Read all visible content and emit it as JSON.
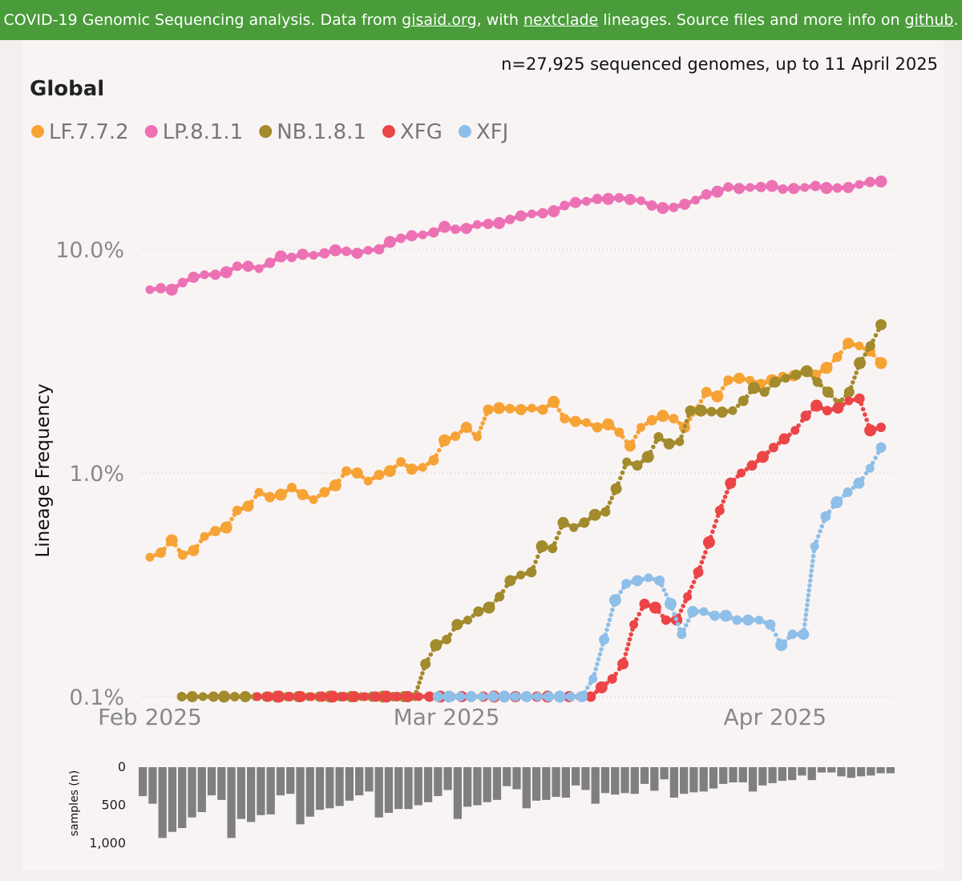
{
  "banner": {
    "t1": "COVID-19 Genomic Sequencing analysis. Data from ",
    "l1": "gisaid.org",
    "t2": ", with ",
    "l2": "nextclade",
    "t3": " lineages. Source files and more info on ",
    "l3": "github",
    "t4": "."
  },
  "colors": {
    "banner": "#4a9c3a",
    "LF.7.7.2": "#f6a336",
    "LP.8.1.1": "#ec71b4",
    "NB.1.8.1": "#a38a2c",
    "XFG": "#ec4547",
    "XFJ": "#8ebfe8",
    "samples_bar": "#7f7f7f"
  },
  "chart_data": [
    {
      "type": "line",
      "title": "Global",
      "subtitle": "n=27,925 sequenced genomes, up to 11 April 2025",
      "ylabel": "Lineage Frequency",
      "yscale": "log",
      "ylim": [
        0.1,
        25
      ],
      "yticks": [
        0.1,
        1.0,
        10.0
      ],
      "ytick_labels": [
        "0.1%",
        "1.0%",
        "10.0%"
      ],
      "x_start": "2025-02-01",
      "x_end": "2025-04-11",
      "xticks": [
        "2025-02-01",
        "2025-03-01",
        "2025-04-01"
      ],
      "xtick_labels": [
        "Feb 2025",
        "Mar 2025",
        "Apr 2025"
      ],
      "grid": "horizontal-dotted",
      "legend_position": "top-left",
      "series": [
        {
          "name": "LF.7.7.2",
          "values": [
            0.42,
            0.44,
            0.5,
            0.43,
            0.45,
            0.52,
            0.55,
            0.57,
            0.68,
            0.71,
            0.82,
            0.78,
            0.8,
            0.86,
            0.8,
            0.76,
            0.82,
            0.88,
            1.02,
            1.0,
            0.92,
            0.98,
            1.02,
            1.12,
            1.04,
            1.06,
            1.14,
            1.4,
            1.46,
            1.6,
            1.45,
            1.92,
            1.95,
            1.94,
            1.92,
            1.95,
            1.92,
            2.08,
            1.75,
            1.7,
            1.68,
            1.6,
            1.65,
            1.52,
            1.32,
            1.6,
            1.72,
            1.8,
            1.75,
            1.6,
            1.9,
            2.3,
            2.2,
            2.6,
            2.65,
            2.6,
            2.5,
            2.6,
            2.7,
            2.72,
            2.85,
            2.75,
            2.95,
            3.3,
            3.8,
            3.7,
            3.5,
            3.1
          ]
        },
        {
          "name": "LP.8.1.1",
          "values": [
            6.6,
            6.7,
            6.6,
            7.1,
            7.5,
            7.7,
            7.7,
            7.9,
            8.4,
            8.4,
            8.2,
            8.7,
            9.3,
            9.2,
            9.5,
            9.4,
            9.6,
            9.9,
            9.8,
            9.6,
            9.9,
            10.0,
            10.8,
            11.2,
            11.5,
            11.6,
            11.9,
            12.6,
            12.3,
            12.4,
            12.9,
            13.0,
            13.1,
            13.6,
            14.1,
            14.4,
            14.5,
            14.8,
            15.7,
            16.2,
            16.4,
            16.8,
            16.8,
            17.0,
            16.7,
            16.5,
            15.7,
            15.3,
            15.4,
            15.9,
            16.6,
            17.6,
            18.1,
            19.0,
            18.7,
            18.9,
            19.0,
            19.2,
            18.6,
            18.7,
            18.9,
            19.2,
            18.8,
            18.8,
            18.9,
            19.5,
            20.0,
            20.1
          ]
        },
        {
          "name": "NB.1.8.1",
          "values": [
            null,
            null,
            null,
            0.1,
            0.1,
            0.1,
            0.1,
            0.1,
            0.1,
            0.1,
            0.1,
            0.1,
            0.1,
            0.1,
            0.1,
            0.1,
            0.1,
            0.1,
            0.1,
            0.1,
            0.1,
            0.1,
            0.1,
            0.1,
            0.1,
            0.1,
            0.14,
            0.17,
            0.18,
            0.21,
            0.22,
            0.24,
            0.25,
            0.28,
            0.33,
            0.35,
            0.36,
            0.47,
            0.46,
            0.6,
            0.57,
            0.6,
            0.65,
            0.67,
            0.85,
            1.12,
            1.08,
            1.18,
            1.45,
            1.35,
            1.38,
            1.9,
            1.9,
            1.88,
            1.87,
            1.9,
            2.1,
            2.4,
            2.3,
            2.55,
            2.65,
            2.75,
            2.85,
            2.55,
            2.3,
            2.05,
            2.3,
            3.1,
            3.7,
            4.6
          ]
        },
        {
          "name": "XFG",
          "values": [
            null,
            null,
            null,
            null,
            null,
            null,
            null,
            null,
            null,
            null,
            0.1,
            0.1,
            0.1,
            0.1,
            0.1,
            0.1,
            0.1,
            0.1,
            0.1,
            0.1,
            0.1,
            0.1,
            0.1,
            0.1,
            0.1,
            0.1,
            0.1,
            0.1,
            0.1,
            0.1,
            0.1,
            0.1,
            0.1,
            0.1,
            0.1,
            0.1,
            0.1,
            0.1,
            0.1,
            0.1,
            0.1,
            0.1,
            0.11,
            0.12,
            0.14,
            0.21,
            0.26,
            0.25,
            0.22,
            0.22,
            0.28,
            0.36,
            0.49,
            0.68,
            0.9,
            1.0,
            1.08,
            1.18,
            1.3,
            1.42,
            1.55,
            1.8,
            2.0,
            1.9,
            1.95,
            2.1,
            2.15,
            1.55,
            1.6
          ]
        },
        {
          "name": "XFJ",
          "values": [
            null,
            null,
            null,
            null,
            null,
            null,
            null,
            null,
            null,
            null,
            null,
            null,
            null,
            null,
            null,
            null,
            null,
            null,
            null,
            null,
            null,
            null,
            null,
            null,
            null,
            null,
            0.1,
            0.1,
            0.1,
            0.1,
            0.1,
            0.1,
            0.1,
            0.1,
            0.1,
            0.1,
            0.1,
            0.1,
            0.1,
            0.1,
            0.12,
            0.18,
            0.27,
            0.32,
            0.33,
            0.34,
            0.33,
            0.26,
            0.19,
            0.24,
            0.24,
            0.23,
            0.23,
            0.22,
            0.22,
            0.22,
            0.21,
            0.17,
            0.19,
            0.19,
            0.47,
            0.64,
            0.74,
            0.82,
            0.9,
            1.05,
            1.3
          ]
        }
      ]
    },
    {
      "type": "bar",
      "ylabel": "samples (n)",
      "ylim": [
        0,
        1000
      ],
      "yticks": [
        0,
        500,
        1000
      ],
      "ytick_labels": [
        "0",
        "500",
        "1,000"
      ],
      "inverted": true,
      "values": [
        380,
        480,
        930,
        850,
        800,
        660,
        590,
        370,
        430,
        930,
        680,
        720,
        630,
        620,
        370,
        350,
        750,
        650,
        560,
        540,
        510,
        440,
        370,
        320,
        660,
        600,
        550,
        550,
        500,
        460,
        380,
        300,
        680,
        520,
        500,
        460,
        430,
        250,
        290,
        540,
        440,
        430,
        390,
        400,
        240,
        300,
        480,
        340,
        360,
        340,
        350,
        220,
        310,
        160,
        400,
        350,
        330,
        320,
        280,
        220,
        200,
        200,
        320,
        240,
        210,
        180,
        170,
        110,
        170,
        70,
        70,
        120,
        140,
        120,
        110,
        80,
        80
      ]
    }
  ]
}
